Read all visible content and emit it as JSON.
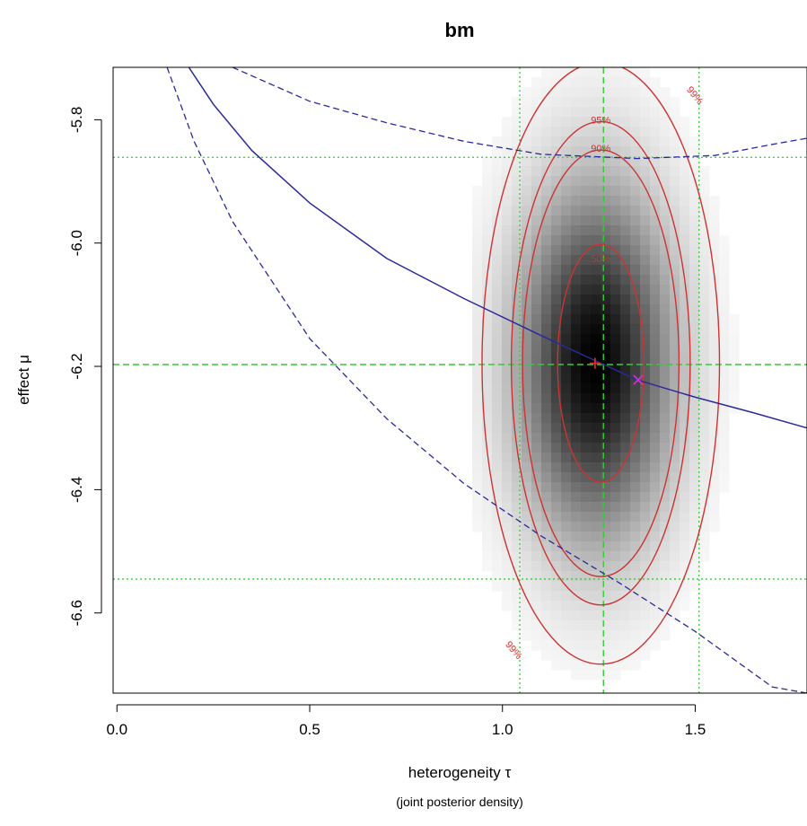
{
  "chart_data": {
    "type": "heatmap",
    "title": "bm",
    "xlabel": "heterogeneity τ",
    "x_sublabel": "(joint posterior density)",
    "ylabel": "effect μ",
    "xlim": [
      -0.01,
      1.79
    ],
    "ylim": [
      -6.73,
      -5.715
    ],
    "x_ticks": [
      0.0,
      0.5,
      1.0,
      1.5
    ],
    "x_tick_labels": [
      "0.0",
      "0.5",
      "1.0",
      "1.5"
    ],
    "y_ticks": [
      -5.8,
      -6.0,
      -6.2,
      -6.4,
      -6.6
    ],
    "y_tick_labels": [
      "-5.8",
      "-6.0",
      "-6.2",
      "-6.4",
      "-6.6"
    ],
    "density": {
      "mode_tau": 1.24,
      "mode_mu": -6.195,
      "sd_tau": 0.12,
      "sd_mu": 0.17
    },
    "contour_labels": [
      "50%",
      "90%",
      "95%",
      "99%"
    ],
    "colors": {
      "conditional_mean": "#2a2a9a",
      "contour": "#cc3333",
      "marginal_lines": "#33cc33",
      "mode_marker": "#cc3333",
      "mean_marker": "#cc33cc"
    },
    "vertical_lines": {
      "median": {
        "x": 1.262,
        "style": "dashed"
      },
      "interval": {
        "x": [
          1.045,
          1.51
        ],
        "style": "dotted"
      }
    },
    "horizontal_lines": {
      "median": {
        "y": -6.197,
        "style": "dashed"
      },
      "interval": {
        "y": [
          -5.861,
          -6.545
        ],
        "style": "dotted"
      }
    },
    "contours": [
      {
        "label": "50%",
        "cx": 1.255,
        "cy": -6.195,
        "rx": 0.112,
        "ry": 0.193
      },
      {
        "label": "90%",
        "cx": 1.255,
        "cy": -6.195,
        "rx": 0.203,
        "ry": 0.346
      },
      {
        "label": "95%",
        "cx": 1.255,
        "cy": -6.195,
        "rx": 0.232,
        "ry": 0.392
      },
      {
        "label": "99%",
        "cx": 1.255,
        "cy": -6.195,
        "rx": 0.308,
        "ry": 0.488
      }
    ],
    "conditional_mean_curve": {
      "tau": [
        0.16,
        0.25,
        0.35,
        0.5,
        0.7,
        0.9,
        1.1,
        1.262,
        1.35,
        1.5,
        1.65,
        1.79
      ],
      "mu": [
        -5.69,
        -5.775,
        -5.85,
        -5.935,
        -6.025,
        -6.09,
        -6.15,
        -6.197,
        -6.222,
        -6.25,
        -6.275,
        -6.3
      ]
    },
    "conditional_interval_upper": {
      "tau": [
        0.3,
        0.5,
        0.7,
        0.9,
        1.1,
        1.35,
        1.55,
        1.7,
        1.79
      ],
      "mu": [
        -5.715,
        -5.77,
        -5.805,
        -5.835,
        -5.856,
        -5.863,
        -5.858,
        -5.84,
        -5.83
      ]
    },
    "conditional_interval_lower": {
      "tau": [
        0.13,
        0.2,
        0.3,
        0.5,
        0.7,
        0.9,
        1.1,
        1.3,
        1.5,
        1.7,
        1.79
      ],
      "mu": [
        -5.715,
        -5.835,
        -5.965,
        -6.155,
        -6.285,
        -6.39,
        -6.475,
        -6.55,
        -6.63,
        -6.72,
        -6.73
      ]
    },
    "mode_point": {
      "tau": 1.24,
      "mu": -6.195
    },
    "mean_point": {
      "tau": 1.352,
      "mu": -6.222
    }
  }
}
